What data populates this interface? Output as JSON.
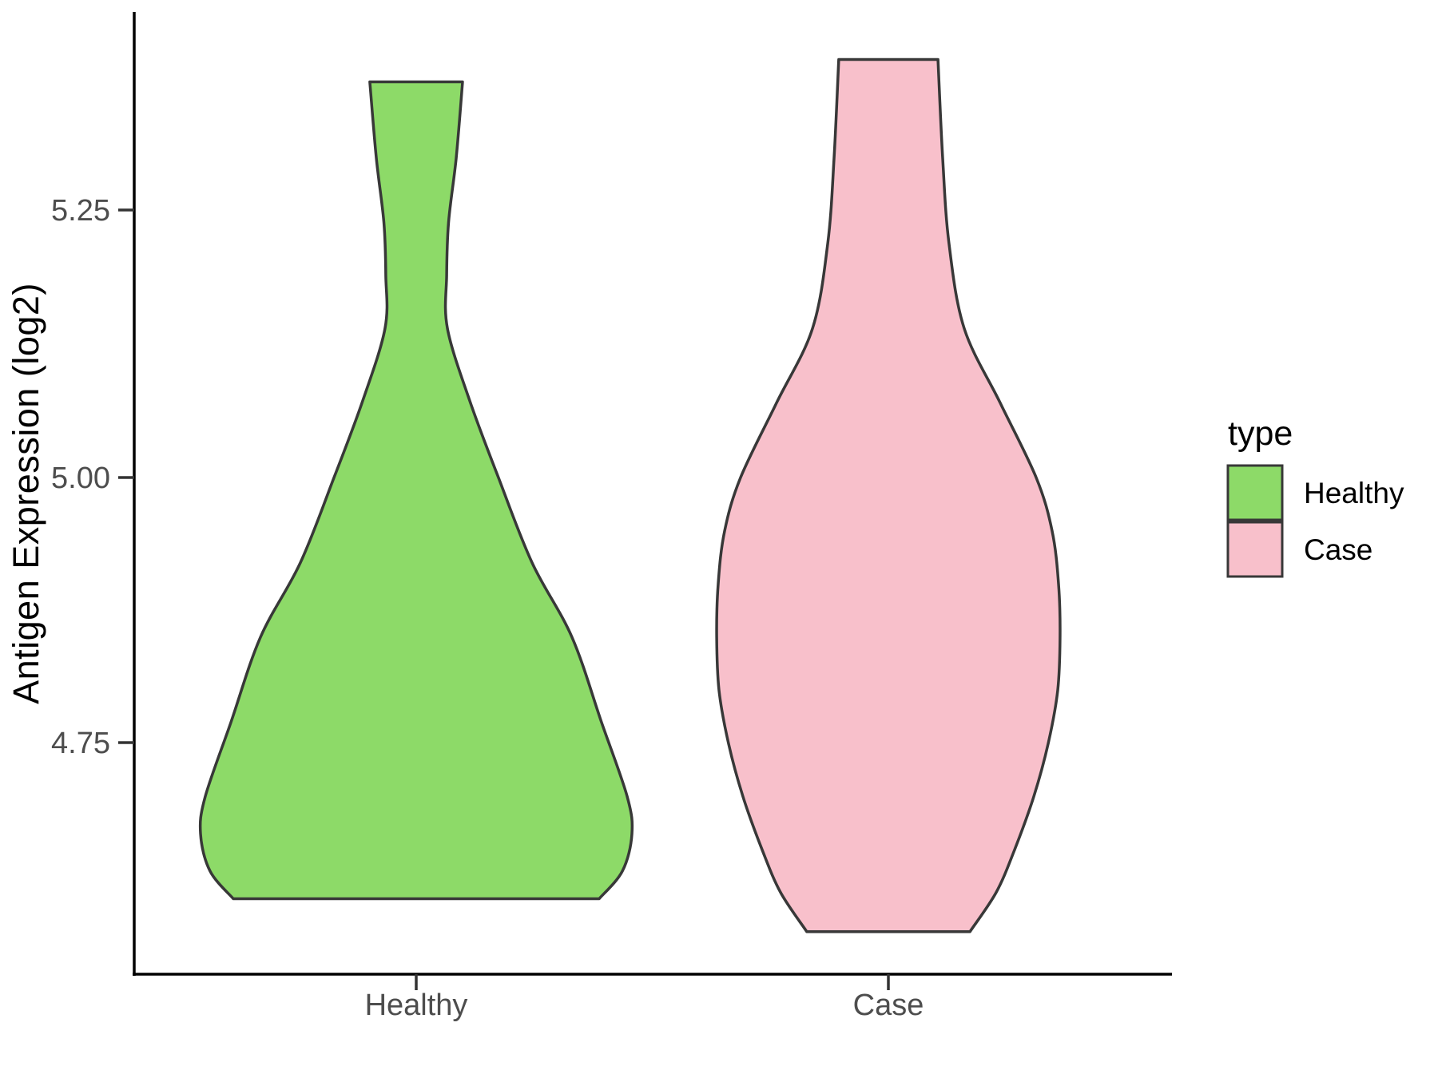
{
  "chart_data": {
    "type": "violin",
    "title": "",
    "xlabel": "",
    "ylabel": "Antigen Expression (log2)",
    "categories": [
      "Healthy",
      "Case"
    ],
    "y_ticks": [
      4.75,
      5.0,
      5.25
    ],
    "y_tick_labels": [
      "4.75",
      "5.00",
      "5.25"
    ],
    "ylim": [
      4.53,
      5.44
    ],
    "grid": "off",
    "legend": {
      "title": "type",
      "position": "right",
      "entries": [
        {
          "label": "Healthy",
          "color": "#8dda68"
        },
        {
          "label": "Case",
          "color": "#f8c0cb"
        }
      ]
    },
    "colors": {
      "healthy_fill": "#8dda68",
      "case_fill": "#f8c0cb",
      "outline": "#383838",
      "axis_line": "#000000",
      "tick_text": "#4d4d4d"
    },
    "series": [
      {
        "name": "Healthy",
        "fill": "#8dda68",
        "outline": "#383838",
        "min": 4.604,
        "max": 5.372,
        "profile": [
          {
            "v": 5.372,
            "w": 0.215
          },
          {
            "v": 5.3,
            "w": 0.185
          },
          {
            "v": 5.24,
            "w": 0.15
          },
          {
            "v": 5.19,
            "w": 0.141
          },
          {
            "v": 5.14,
            "w": 0.145
          },
          {
            "v": 5.07,
            "w": 0.252
          },
          {
            "v": 5.0,
            "w": 0.381
          },
          {
            "v": 4.92,
            "w": 0.537
          },
          {
            "v": 4.85,
            "w": 0.722
          },
          {
            "v": 4.77,
            "w": 0.859
          },
          {
            "v": 4.7,
            "w": 0.978
          },
          {
            "v": 4.665,
            "w": 1.0
          },
          {
            "v": 4.63,
            "w": 0.956
          },
          {
            "v": 4.604,
            "w": 0.848
          }
        ]
      },
      {
        "name": "Case",
        "fill": "#f8c0cb",
        "outline": "#383838",
        "min": 4.573,
        "max": 5.393,
        "profile": [
          {
            "v": 5.393,
            "w": 0.23
          },
          {
            "v": 5.3,
            "w": 0.252
          },
          {
            "v": 5.22,
            "w": 0.281
          },
          {
            "v": 5.14,
            "w": 0.352
          },
          {
            "v": 5.07,
            "w": 0.519
          },
          {
            "v": 5.0,
            "w": 0.685
          },
          {
            "v": 4.95,
            "w": 0.759
          },
          {
            "v": 4.9,
            "w": 0.789
          },
          {
            "v": 4.85,
            "w": 0.796
          },
          {
            "v": 4.8,
            "w": 0.785
          },
          {
            "v": 4.75,
            "w": 0.741
          },
          {
            "v": 4.7,
            "w": 0.674
          },
          {
            "v": 4.65,
            "w": 0.585
          },
          {
            "v": 4.61,
            "w": 0.5
          },
          {
            "v": 4.573,
            "w": 0.378
          }
        ]
      }
    ]
  }
}
